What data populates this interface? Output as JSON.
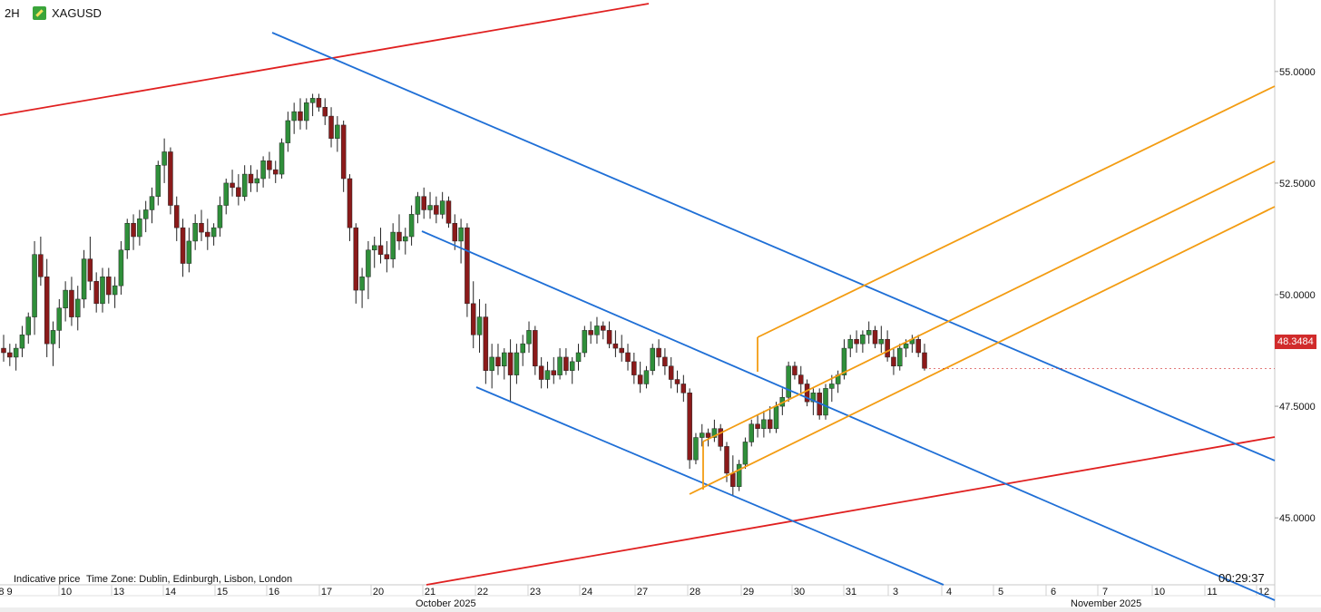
{
  "header": {
    "timeframe": "2H",
    "symbol": "XAGUSD"
  },
  "footer": {
    "indicative": "Indicative price",
    "timezone": "Time Zone: Dublin, Edinburgh, Lisbon, London",
    "countdown": "00:29:37"
  },
  "price_label": "48.3484",
  "colors": {
    "up": "#2f8f3a",
    "down": "#8b1a1a",
    "blue": "#1f6fd6",
    "orange": "#f39c12",
    "red": "#e02020",
    "grid": "#e6e6e6"
  },
  "chart_data": {
    "type": "candlestick",
    "symbol": "XAGUSD",
    "timeframe": "2H",
    "ylim": [
      43.5,
      56.5
    ],
    "y_ticks": [
      "55.0000",
      "52.5000",
      "50.0000",
      "47.5000",
      "45.0000"
    ],
    "x_ticks": [
      "8 9",
      "10",
      "13",
      "14",
      "15",
      "16",
      "17",
      "20",
      "21",
      "22",
      "23",
      "24",
      "27",
      "28",
      "29",
      "30",
      "31",
      "3",
      "4",
      "5",
      "6",
      "7",
      "10",
      "11",
      "12"
    ],
    "month_labels": [
      "October 2025",
      "November 2025"
    ],
    "last_price": 48.3484,
    "candles": [
      [
        48.8,
        49.1,
        48.5,
        48.7
      ],
      [
        48.7,
        48.9,
        48.4,
        48.6
      ],
      [
        48.6,
        48.9,
        48.3,
        48.8
      ],
      [
        48.8,
        49.3,
        48.6,
        49.1
      ],
      [
        49.1,
        49.6,
        48.9,
        49.5
      ],
      [
        49.5,
        51.2,
        49.1,
        50.9
      ],
      [
        50.9,
        51.3,
        50.2,
        50.4
      ],
      [
        50.4,
        50.8,
        48.6,
        48.9
      ],
      [
        48.9,
        49.4,
        48.4,
        49.2
      ],
      [
        49.2,
        49.9,
        48.8,
        49.7
      ],
      [
        49.7,
        50.3,
        49.4,
        50.1
      ],
      [
        50.1,
        50.4,
        49.3,
        49.5
      ],
      [
        49.5,
        50.2,
        49.2,
        49.9
      ],
      [
        49.9,
        51.0,
        49.7,
        50.8
      ],
      [
        50.8,
        51.3,
        50.1,
        50.3
      ],
      [
        50.3,
        50.5,
        49.6,
        49.8
      ],
      [
        49.8,
        50.6,
        49.6,
        50.4
      ],
      [
        50.4,
        50.6,
        49.8,
        50.0
      ],
      [
        50.0,
        50.4,
        49.7,
        50.2
      ],
      [
        50.2,
        51.2,
        50.0,
        51.0
      ],
      [
        51.0,
        51.7,
        50.8,
        51.6
      ],
      [
        51.6,
        51.8,
        51.0,
        51.3
      ],
      [
        51.3,
        51.9,
        51.1,
        51.7
      ],
      [
        51.7,
        52.1,
        51.4,
        51.9
      ],
      [
        51.9,
        52.4,
        51.6,
        52.2
      ],
      [
        52.2,
        53.0,
        52.0,
        52.9
      ],
      [
        52.9,
        53.5,
        52.5,
        53.2
      ],
      [
        53.2,
        53.3,
        51.8,
        52.0
      ],
      [
        52.0,
        52.2,
        51.2,
        51.5
      ],
      [
        51.5,
        51.7,
        50.4,
        50.7
      ],
      [
        50.7,
        51.5,
        50.5,
        51.2
      ],
      [
        51.2,
        51.8,
        51.0,
        51.6
      ],
      [
        51.6,
        51.9,
        51.2,
        51.4
      ],
      [
        51.4,
        51.7,
        51.0,
        51.3
      ],
      [
        51.3,
        51.6,
        51.1,
        51.5
      ],
      [
        51.5,
        52.2,
        51.3,
        52.0
      ],
      [
        52.0,
        52.6,
        51.8,
        52.5
      ],
      [
        52.5,
        52.8,
        52.2,
        52.4
      ],
      [
        52.4,
        52.7,
        52.0,
        52.2
      ],
      [
        52.2,
        52.9,
        52.1,
        52.7
      ],
      [
        52.7,
        52.9,
        52.3,
        52.5
      ],
      [
        52.5,
        52.8,
        52.3,
        52.6
      ],
      [
        52.6,
        53.1,
        52.4,
        53.0
      ],
      [
        53.0,
        53.2,
        52.6,
        52.8
      ],
      [
        52.8,
        53.0,
        52.5,
        52.7
      ],
      [
        52.7,
        53.5,
        52.6,
        53.4
      ],
      [
        53.4,
        54.1,
        53.2,
        53.9
      ],
      [
        53.9,
        54.3,
        53.6,
        54.1
      ],
      [
        54.1,
        54.4,
        53.7,
        53.9
      ],
      [
        53.9,
        54.4,
        53.7,
        54.3
      ],
      [
        54.3,
        54.5,
        54.0,
        54.4
      ],
      [
        54.4,
        54.5,
        54.1,
        54.2
      ],
      [
        54.2,
        54.4,
        53.8,
        54.0
      ],
      [
        54.0,
        54.2,
        53.3,
        53.5
      ],
      [
        53.5,
        54.0,
        53.2,
        53.8
      ],
      [
        53.8,
        53.9,
        52.3,
        52.6
      ],
      [
        52.6,
        52.7,
        51.2,
        51.5
      ],
      [
        51.5,
        51.6,
        49.8,
        50.1
      ],
      [
        50.1,
        50.6,
        49.7,
        50.4
      ],
      [
        50.4,
        51.2,
        49.9,
        51.0
      ],
      [
        51.0,
        51.3,
        50.6,
        51.1
      ],
      [
        51.1,
        51.5,
        50.7,
        50.9
      ],
      [
        50.9,
        51.2,
        50.5,
        50.8
      ],
      [
        50.8,
        51.6,
        50.6,
        51.4
      ],
      [
        51.4,
        51.8,
        51.0,
        51.2
      ],
      [
        51.2,
        51.5,
        50.9,
        51.3
      ],
      [
        51.3,
        52.0,
        51.1,
        51.8
      ],
      [
        51.8,
        52.3,
        51.6,
        52.2
      ],
      [
        52.2,
        52.4,
        51.7,
        51.9
      ],
      [
        51.9,
        52.3,
        51.7,
        52.0
      ],
      [
        52.0,
        52.2,
        51.6,
        51.8
      ],
      [
        51.8,
        52.3,
        51.7,
        52.1
      ],
      [
        52.1,
        52.2,
        51.5,
        51.6
      ],
      [
        51.6,
        51.8,
        51.0,
        51.2
      ],
      [
        51.2,
        51.7,
        50.7,
        51.5
      ],
      [
        51.5,
        51.6,
        49.5,
        49.8
      ],
      [
        49.8,
        50.3,
        48.8,
        49.1
      ],
      [
        49.1,
        49.9,
        48.7,
        49.5
      ],
      [
        49.5,
        49.8,
        48.0,
        48.3
      ],
      [
        48.3,
        48.9,
        47.9,
        48.6
      ],
      [
        48.6,
        48.9,
        48.2,
        48.4
      ],
      [
        48.4,
        48.8,
        48.1,
        48.7
      ],
      [
        48.7,
        49.0,
        47.6,
        48.2
      ],
      [
        48.2,
        48.9,
        48.0,
        48.7
      ],
      [
        48.7,
        49.1,
        48.4,
        48.9
      ],
      [
        48.9,
        49.4,
        48.7,
        49.2
      ],
      [
        49.2,
        49.3,
        48.2,
        48.4
      ],
      [
        48.4,
        48.6,
        47.9,
        48.1
      ],
      [
        48.1,
        48.5,
        47.9,
        48.3
      ],
      [
        48.3,
        48.6,
        48.0,
        48.2
      ],
      [
        48.2,
        48.8,
        48.1,
        48.6
      ],
      [
        48.6,
        48.8,
        48.2,
        48.3
      ],
      [
        48.3,
        48.6,
        48.0,
        48.5
      ],
      [
        48.5,
        48.9,
        48.3,
        48.7
      ],
      [
        48.7,
        49.3,
        48.6,
        49.2
      ],
      [
        49.2,
        49.4,
        48.9,
        49.1
      ],
      [
        49.1,
        49.5,
        48.9,
        49.3
      ],
      [
        49.3,
        49.4,
        49.0,
        49.2
      ],
      [
        49.2,
        49.4,
        48.8,
        48.9
      ],
      [
        48.9,
        49.2,
        48.6,
        48.8
      ],
      [
        48.8,
        49.1,
        48.5,
        48.7
      ],
      [
        48.7,
        48.9,
        48.3,
        48.5
      ],
      [
        48.5,
        48.7,
        48.0,
        48.2
      ],
      [
        48.2,
        48.5,
        47.8,
        48.0
      ],
      [
        48.0,
        48.4,
        47.9,
        48.3
      ],
      [
        48.3,
        48.9,
        48.2,
        48.8
      ],
      [
        48.8,
        49.0,
        48.4,
        48.6
      ],
      [
        48.6,
        48.8,
        48.2,
        48.4
      ],
      [
        48.4,
        48.6,
        47.9,
        48.1
      ],
      [
        48.1,
        48.3,
        47.8,
        48.0
      ],
      [
        48.0,
        48.2,
        47.6,
        47.8
      ],
      [
        47.8,
        47.9,
        46.1,
        46.3
      ],
      [
        46.3,
        46.9,
        46.2,
        46.8
      ],
      [
        46.8,
        47.1,
        46.6,
        46.9
      ],
      [
        46.9,
        47.0,
        46.6,
        46.8
      ],
      [
        46.8,
        47.2,
        46.7,
        47.0
      ],
      [
        47.0,
        47.1,
        46.5,
        46.6
      ],
      [
        46.6,
        46.7,
        45.8,
        46.0
      ],
      [
        46.0,
        46.4,
        45.5,
        45.7
      ],
      [
        45.7,
        46.3,
        45.6,
        46.2
      ],
      [
        46.2,
        46.8,
        46.1,
        46.7
      ],
      [
        46.7,
        47.2,
        46.6,
        47.1
      ],
      [
        47.1,
        47.3,
        46.8,
        47.0
      ],
      [
        47.0,
        47.4,
        46.8,
        47.2
      ],
      [
        47.2,
        47.5,
        46.9,
        47.0
      ],
      [
        47.0,
        47.6,
        46.9,
        47.5
      ],
      [
        47.5,
        47.9,
        47.3,
        47.7
      ],
      [
        47.7,
        48.5,
        47.6,
        48.4
      ],
      [
        48.4,
        48.5,
        48.1,
        48.2
      ],
      [
        48.2,
        48.4,
        47.8,
        48.0
      ],
      [
        48.0,
        48.1,
        47.5,
        47.6
      ],
      [
        47.6,
        47.9,
        47.3,
        47.8
      ],
      [
        47.8,
        47.9,
        47.2,
        47.3
      ],
      [
        47.3,
        48.0,
        47.2,
        47.9
      ],
      [
        47.9,
        48.2,
        47.6,
        48.0
      ],
      [
        48.0,
        48.3,
        47.8,
        48.2
      ],
      [
        48.2,
        49.0,
        48.1,
        48.8
      ],
      [
        48.8,
        49.1,
        48.6,
        49.0
      ],
      [
        49.0,
        49.2,
        48.7,
        48.9
      ],
      [
        48.9,
        49.2,
        48.7,
        49.1
      ],
      [
        49.1,
        49.4,
        48.9,
        49.2
      ],
      [
        49.2,
        49.3,
        48.8,
        48.9
      ],
      [
        48.9,
        49.3,
        48.7,
        49.0
      ],
      [
        49.0,
        49.2,
        48.5,
        48.6
      ],
      [
        48.6,
        48.8,
        48.2,
        48.4
      ],
      [
        48.4,
        48.9,
        48.3,
        48.8
      ],
      [
        48.8,
        49.0,
        48.6,
        48.9
      ],
      [
        48.9,
        49.1,
        48.7,
        49.0
      ],
      [
        49.0,
        49.1,
        48.6,
        48.7
      ],
      [
        48.7,
        48.9,
        48.3,
        48.35
      ]
    ],
    "annotations": [
      {
        "type": "trendline",
        "color": "red",
        "label": "upper red line"
      },
      {
        "type": "trendline",
        "color": "red",
        "label": "lower red line"
      },
      {
        "type": "channel",
        "color": "blue",
        "label": "descending channel"
      },
      {
        "type": "channel",
        "color": "orange",
        "label": "ascending channel"
      }
    ]
  }
}
